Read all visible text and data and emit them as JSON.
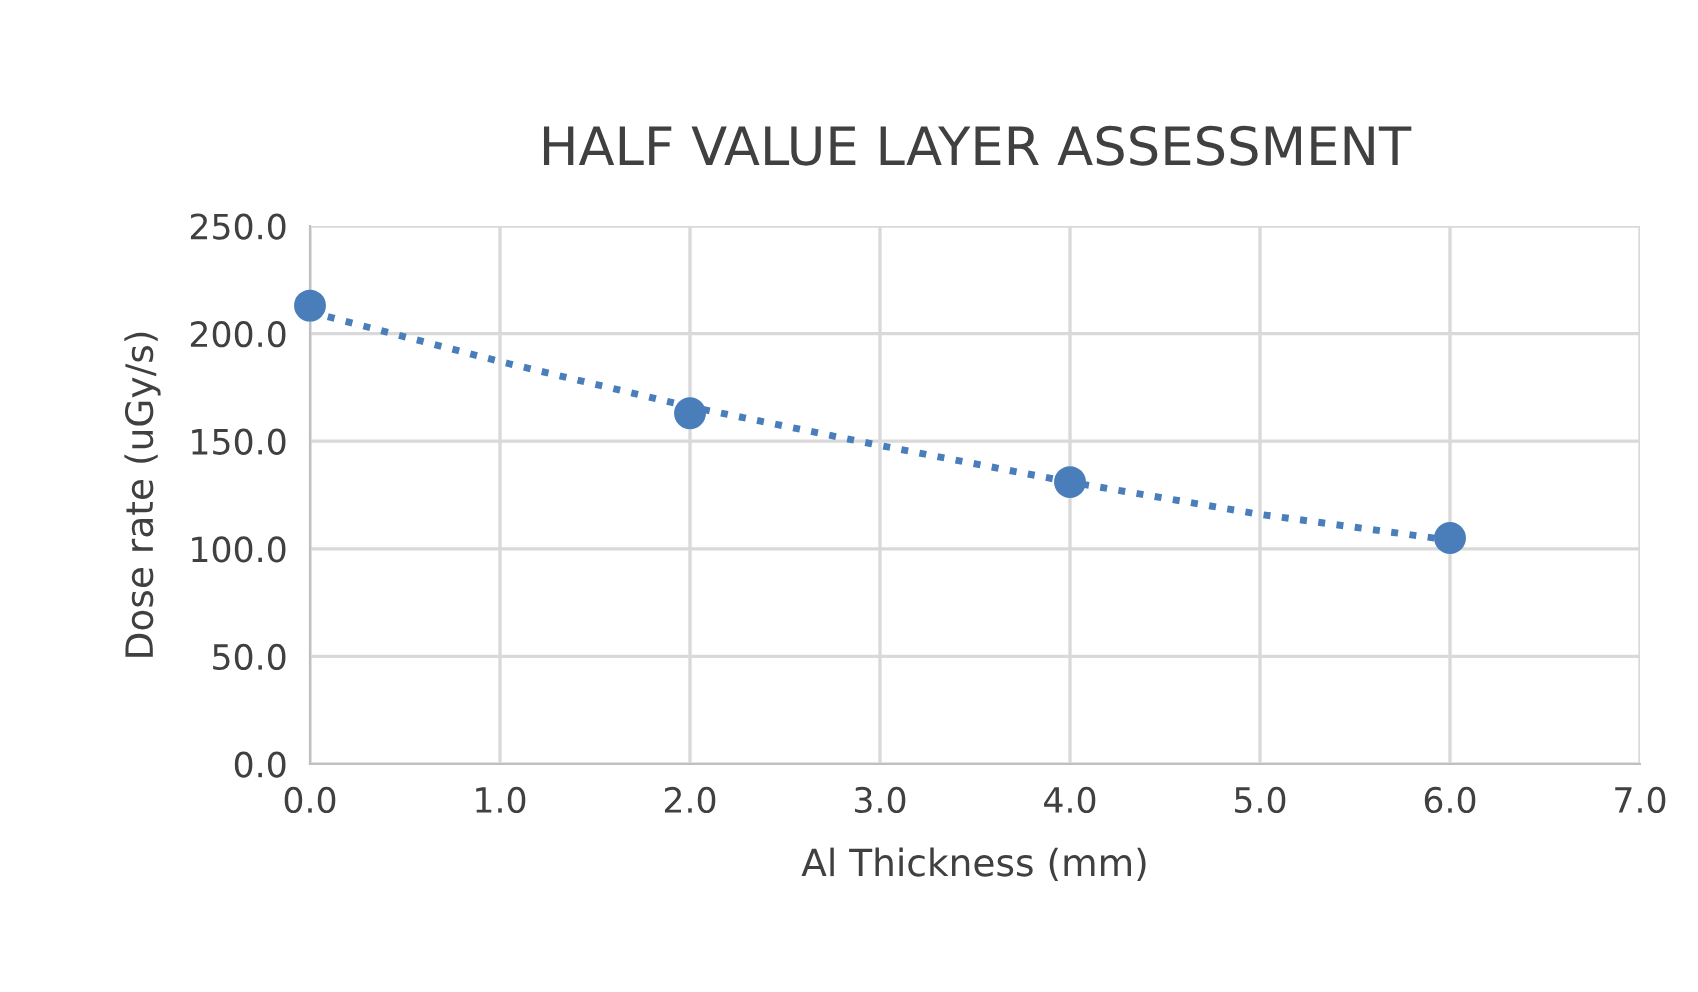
{
  "chart_data": {
    "type": "scatter",
    "title": "HALF VALUE LAYER ASSESSMENT",
    "xlabel": "Al Thickness (mm)",
    "ylabel": "Dose rate (uGy/s)",
    "series": [
      {
        "color": "#4a7ebb",
        "x": [
          0,
          2,
          4,
          6
        ],
        "values": [
          213,
          163,
          131,
          105
        ],
        "marker": "circle"
      },
      {
        "type": "line",
        "color": "#4a7ebb",
        "x": [
          0,
          1,
          2,
          3,
          4,
          5,
          6
        ],
        "values": [
          210,
          187,
          166,
          148,
          131,
          116,
          104
        ],
        "line_style": "dotted",
        "marker": "none"
      }
    ],
    "xlim": [
      0,
      7
    ],
    "xticks": [
      {
        "value": 0,
        "label": "0.0"
      },
      {
        "value": 1,
        "label": "1.0"
      },
      {
        "value": 2,
        "label": "2.0"
      },
      {
        "value": 3,
        "label": "3.0"
      },
      {
        "value": 4,
        "label": "4.0"
      },
      {
        "value": 5,
        "label": "5.0"
      },
      {
        "value": 6,
        "label": "6.0"
      },
      {
        "value": 7,
        "label": "7.0"
      }
    ],
    "ylim": [
      0,
      250
    ],
    "yticks": [
      {
        "value": 0,
        "label": "0.0"
      },
      {
        "value": 50,
        "label": "50.0"
      },
      {
        "value": 100,
        "label": "100.0"
      },
      {
        "value": 150,
        "label": "150.0"
      },
      {
        "value": 200,
        "label": "200.0"
      },
      {
        "value": 250,
        "label": "250.0"
      }
    ],
    "grid": true
  }
}
